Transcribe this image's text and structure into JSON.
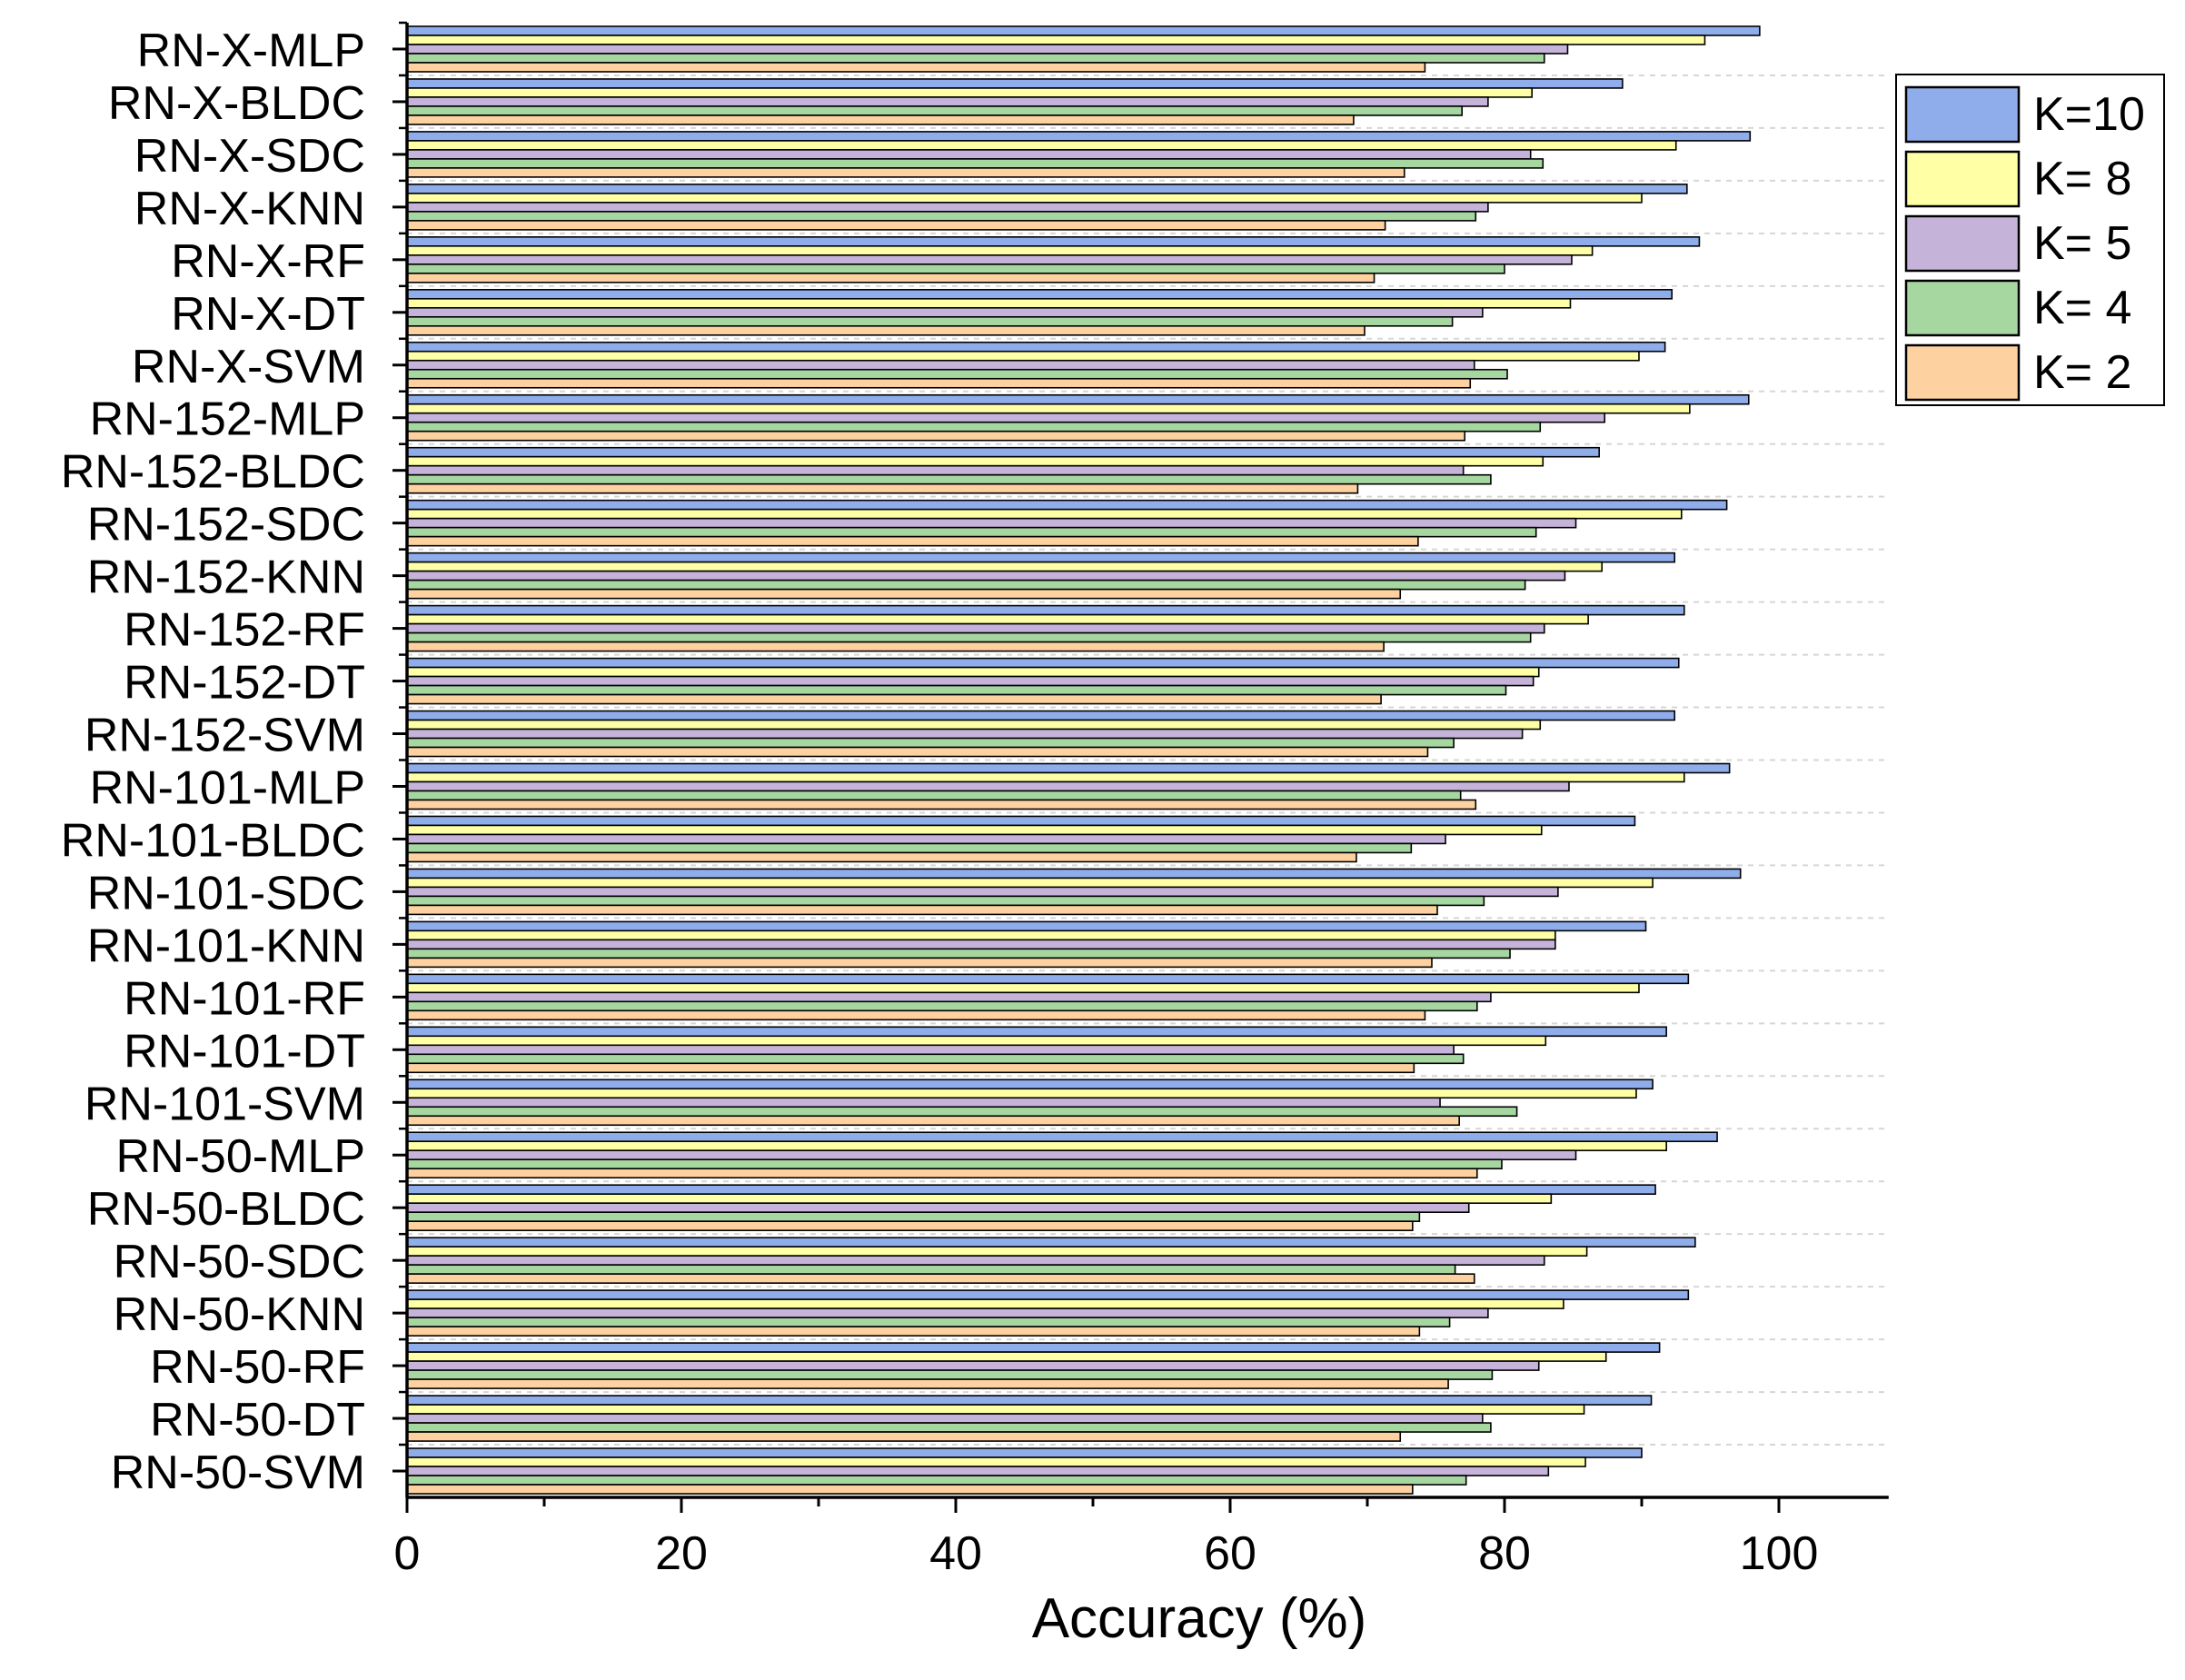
{
  "chart_data": {
    "type": "bar",
    "orientation": "horizontal",
    "title": "",
    "xlabel": "Accuracy (%)",
    "ylabel": "",
    "xlim": [
      0,
      108
    ],
    "xticks": [
      "0",
      "20",
      "40",
      "60",
      "80",
      "100"
    ],
    "grid": false,
    "legend_position": "top-right",
    "categories": [
      "RN-X-MLP",
      "RN-X-BLDC",
      "RN-X-SDC",
      "RN-X-KNN",
      "RN-X-RF",
      "RN-X-DT",
      "RN-X-SVM",
      "RN-152-MLP",
      "RN-152-BLDC",
      "RN-152-SDC",
      "RN-152-KNN",
      "RN-152-RF",
      "RN-152-DT",
      "RN-152-SVM",
      "RN-101-MLP",
      "RN-101-BLDC",
      "RN-101-SDC",
      "RN-101-KNN",
      "RN-101-RF",
      "RN-101-DT",
      "RN-101-SVM",
      "RN-50-MLP",
      "RN-50-BLDC",
      "RN-50-SDC",
      "RN-50-KNN",
      "RN-50-RF",
      "RN-50-DT",
      "RN-50-SVM"
    ],
    "series": [
      {
        "name": "K=10",
        "color": "#8fadea",
        "values": [
          98.6,
          88.6,
          97.9,
          93.3,
          94.2,
          92.2,
          91.7,
          97.8,
          86.9,
          96.2,
          92.4,
          93.1,
          92.7,
          92.4,
          96.4,
          89.5,
          97.2,
          90.3,
          93.4,
          91.8,
          90.8,
          95.5,
          91.0,
          93.9,
          93.4,
          91.3,
          90.7,
          90.0
        ]
      },
      {
        "name": "K= 8",
        "color": "#ffffa6",
        "values": [
          94.6,
          82.0,
          92.5,
          90.0,
          86.4,
          84.8,
          89.8,
          93.5,
          82.8,
          92.9,
          87.1,
          86.1,
          82.5,
          82.6,
          93.1,
          82.7,
          90.8,
          83.7,
          89.8,
          83.0,
          89.6,
          91.8,
          83.4,
          86.0,
          84.3,
          87.4,
          85.8,
          85.9
        ]
      },
      {
        "name": "K= 5",
        "color": "#c5b3da",
        "values": [
          84.6,
          78.8,
          81.9,
          78.8,
          84.9,
          78.4,
          77.8,
          87.3,
          77.0,
          85.2,
          84.4,
          82.9,
          82.1,
          81.3,
          84.7,
          75.7,
          83.9,
          83.7,
          79.0,
          76.3,
          75.3,
          85.2,
          77.4,
          82.9,
          78.8,
          82.5,
          78.4,
          83.2
        ]
      },
      {
        "name": "K= 4",
        "color": "#a6d7a1",
        "values": [
          82.9,
          76.9,
          82.8,
          77.9,
          80.0,
          76.2,
          80.2,
          82.6,
          79.0,
          82.3,
          81.5,
          81.9,
          80.1,
          76.3,
          76.8,
          73.2,
          78.5,
          80.4,
          78.0,
          77.0,
          80.9,
          79.8,
          73.8,
          76.4,
          76.0,
          79.1,
          79.0,
          77.2
        ]
      },
      {
        "name": "K= 2",
        "color": "#fdd1a0",
        "values": [
          74.2,
          69.0,
          72.7,
          71.3,
          70.5,
          69.8,
          77.5,
          77.1,
          69.3,
          73.7,
          72.4,
          71.2,
          71.0,
          74.4,
          77.9,
          69.2,
          75.1,
          74.7,
          74.2,
          73.4,
          76.7,
          78.0,
          73.3,
          77.8,
          73.8,
          75.9,
          72.4,
          73.3
        ]
      }
    ]
  }
}
